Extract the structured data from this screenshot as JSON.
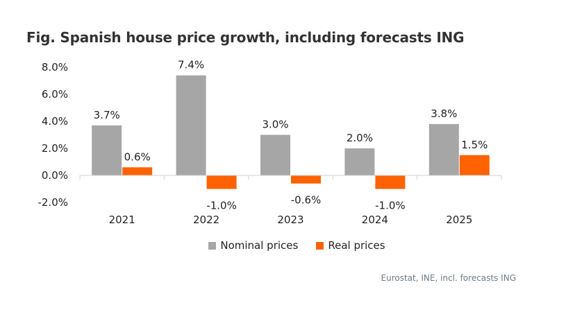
{
  "chart_data": {
    "type": "bar",
    "title": "Fig. Spanish house price growth, including forecasts ING",
    "categories": [
      "2021",
      "2022",
      "2023",
      "2024",
      "2025"
    ],
    "series": [
      {
        "name": "Nominal prices",
        "color": "#a6a6a6",
        "values": [
          3.7,
          7.4,
          3.0,
          2.0,
          3.8
        ],
        "labels": [
          "3.7%",
          "7.4%",
          "3.0%",
          "2.0%",
          "3.8%"
        ]
      },
      {
        "name": "Real prices",
        "color": "#ff6200",
        "values": [
          0.6,
          -1.0,
          -0.6,
          -1.0,
          1.5
        ],
        "labels": [
          "0.6%",
          "-1.0%",
          "-0.6%",
          "-1.0%",
          "1.5%"
        ]
      }
    ],
    "ylim": [
      -2.0,
      8.0
    ],
    "yticks": [
      8.0,
      6.0,
      4.0,
      2.0,
      0.0,
      -2.0
    ],
    "ytick_labels": [
      "8.0%",
      "6.0%",
      "4.0%",
      "2.0%",
      "0.0%",
      "-2.0%"
    ],
    "xlabel": "",
    "ylabel": "",
    "legend": "bottom-center",
    "source": "Eurostat, INE, incl. forecasts ING"
  }
}
